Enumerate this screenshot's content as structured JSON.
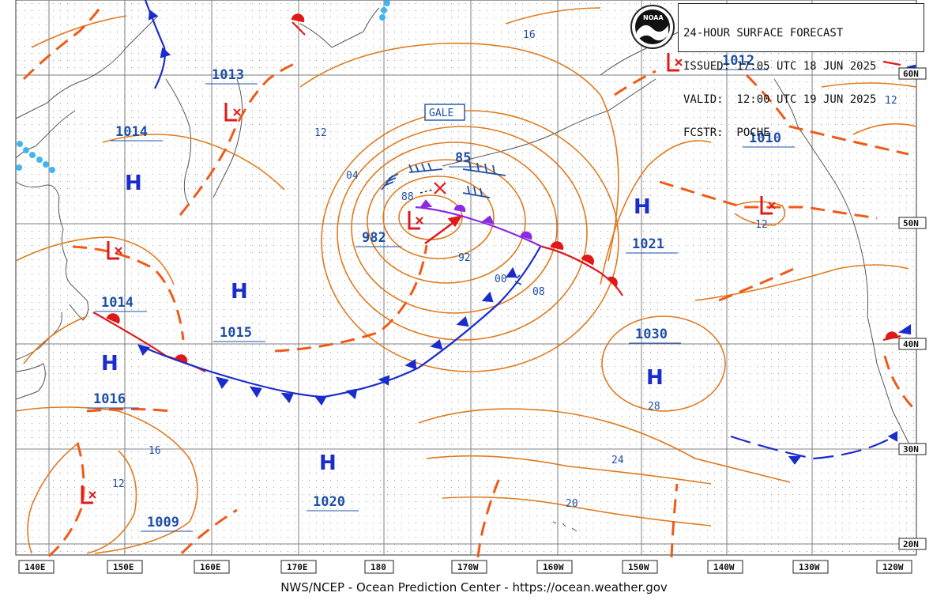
{
  "header": {
    "title": "24-HOUR SURFACE FORECAST",
    "issued": "ISSUED: 17:05 UTC 18 JUN 2025",
    "valid": "VALID:  12:00 UTC 19 JUN 2025",
    "forecaster": "FCSTR:  POCHE",
    "logo_text": "NOAA"
  },
  "footer": {
    "credit": "NWS/NCEP - Ocean Prediction Center - https://ocean.weather.gov"
  },
  "longitude_labels": [
    "140E",
    "150E",
    "160E",
    "170E",
    "180",
    "170W",
    "160W",
    "150W",
    "140W",
    "130W",
    "120W"
  ],
  "latitude_labels": [
    "60N",
    "50N",
    "40N",
    "30N",
    "20N"
  ],
  "pressure_centers": [
    {
      "type": "H",
      "value": "1014",
      "id": "h1"
    },
    {
      "type": "H",
      "value": "1015",
      "id": "h2"
    },
    {
      "type": "H",
      "value": "1016",
      "id": "h3"
    },
    {
      "type": "H",
      "value": "1020",
      "id": "h4"
    },
    {
      "type": "H",
      "value": "1021",
      "id": "h5"
    },
    {
      "type": "H",
      "value": "1030",
      "id": "h6"
    },
    {
      "type": "L",
      "value": "1013",
      "id": "l1"
    },
    {
      "type": "L",
      "value": "1014",
      "id": "l2"
    },
    {
      "type": "L",
      "value": "1009",
      "id": "l3"
    },
    {
      "type": "L",
      "value": "982",
      "id": "l4"
    },
    {
      "type": "L",
      "value": "1012",
      "id": "l5"
    },
    {
      "type": "L",
      "value": "1010",
      "id": "l6"
    }
  ],
  "storm_label": "GALE",
  "future_pressure": "85",
  "isobar_labels": [
    "16",
    "12",
    "04",
    "88",
    "92",
    "00",
    "08",
    "12",
    "12",
    "16",
    "12",
    "28",
    "24",
    "20"
  ],
  "colors": {
    "isobar": "#e07a1e",
    "trough": "#f05a18",
    "warm_front": "#e01818",
    "cold_front": "#1a2ccc",
    "occluded": "#8a2be2",
    "high_label": "#1a2ccc",
    "low_label": "#e01818",
    "value_text": "#1d4fa8",
    "coast": "#555555",
    "grid": "#9a9a9a",
    "ice": "#40b6f0"
  }
}
